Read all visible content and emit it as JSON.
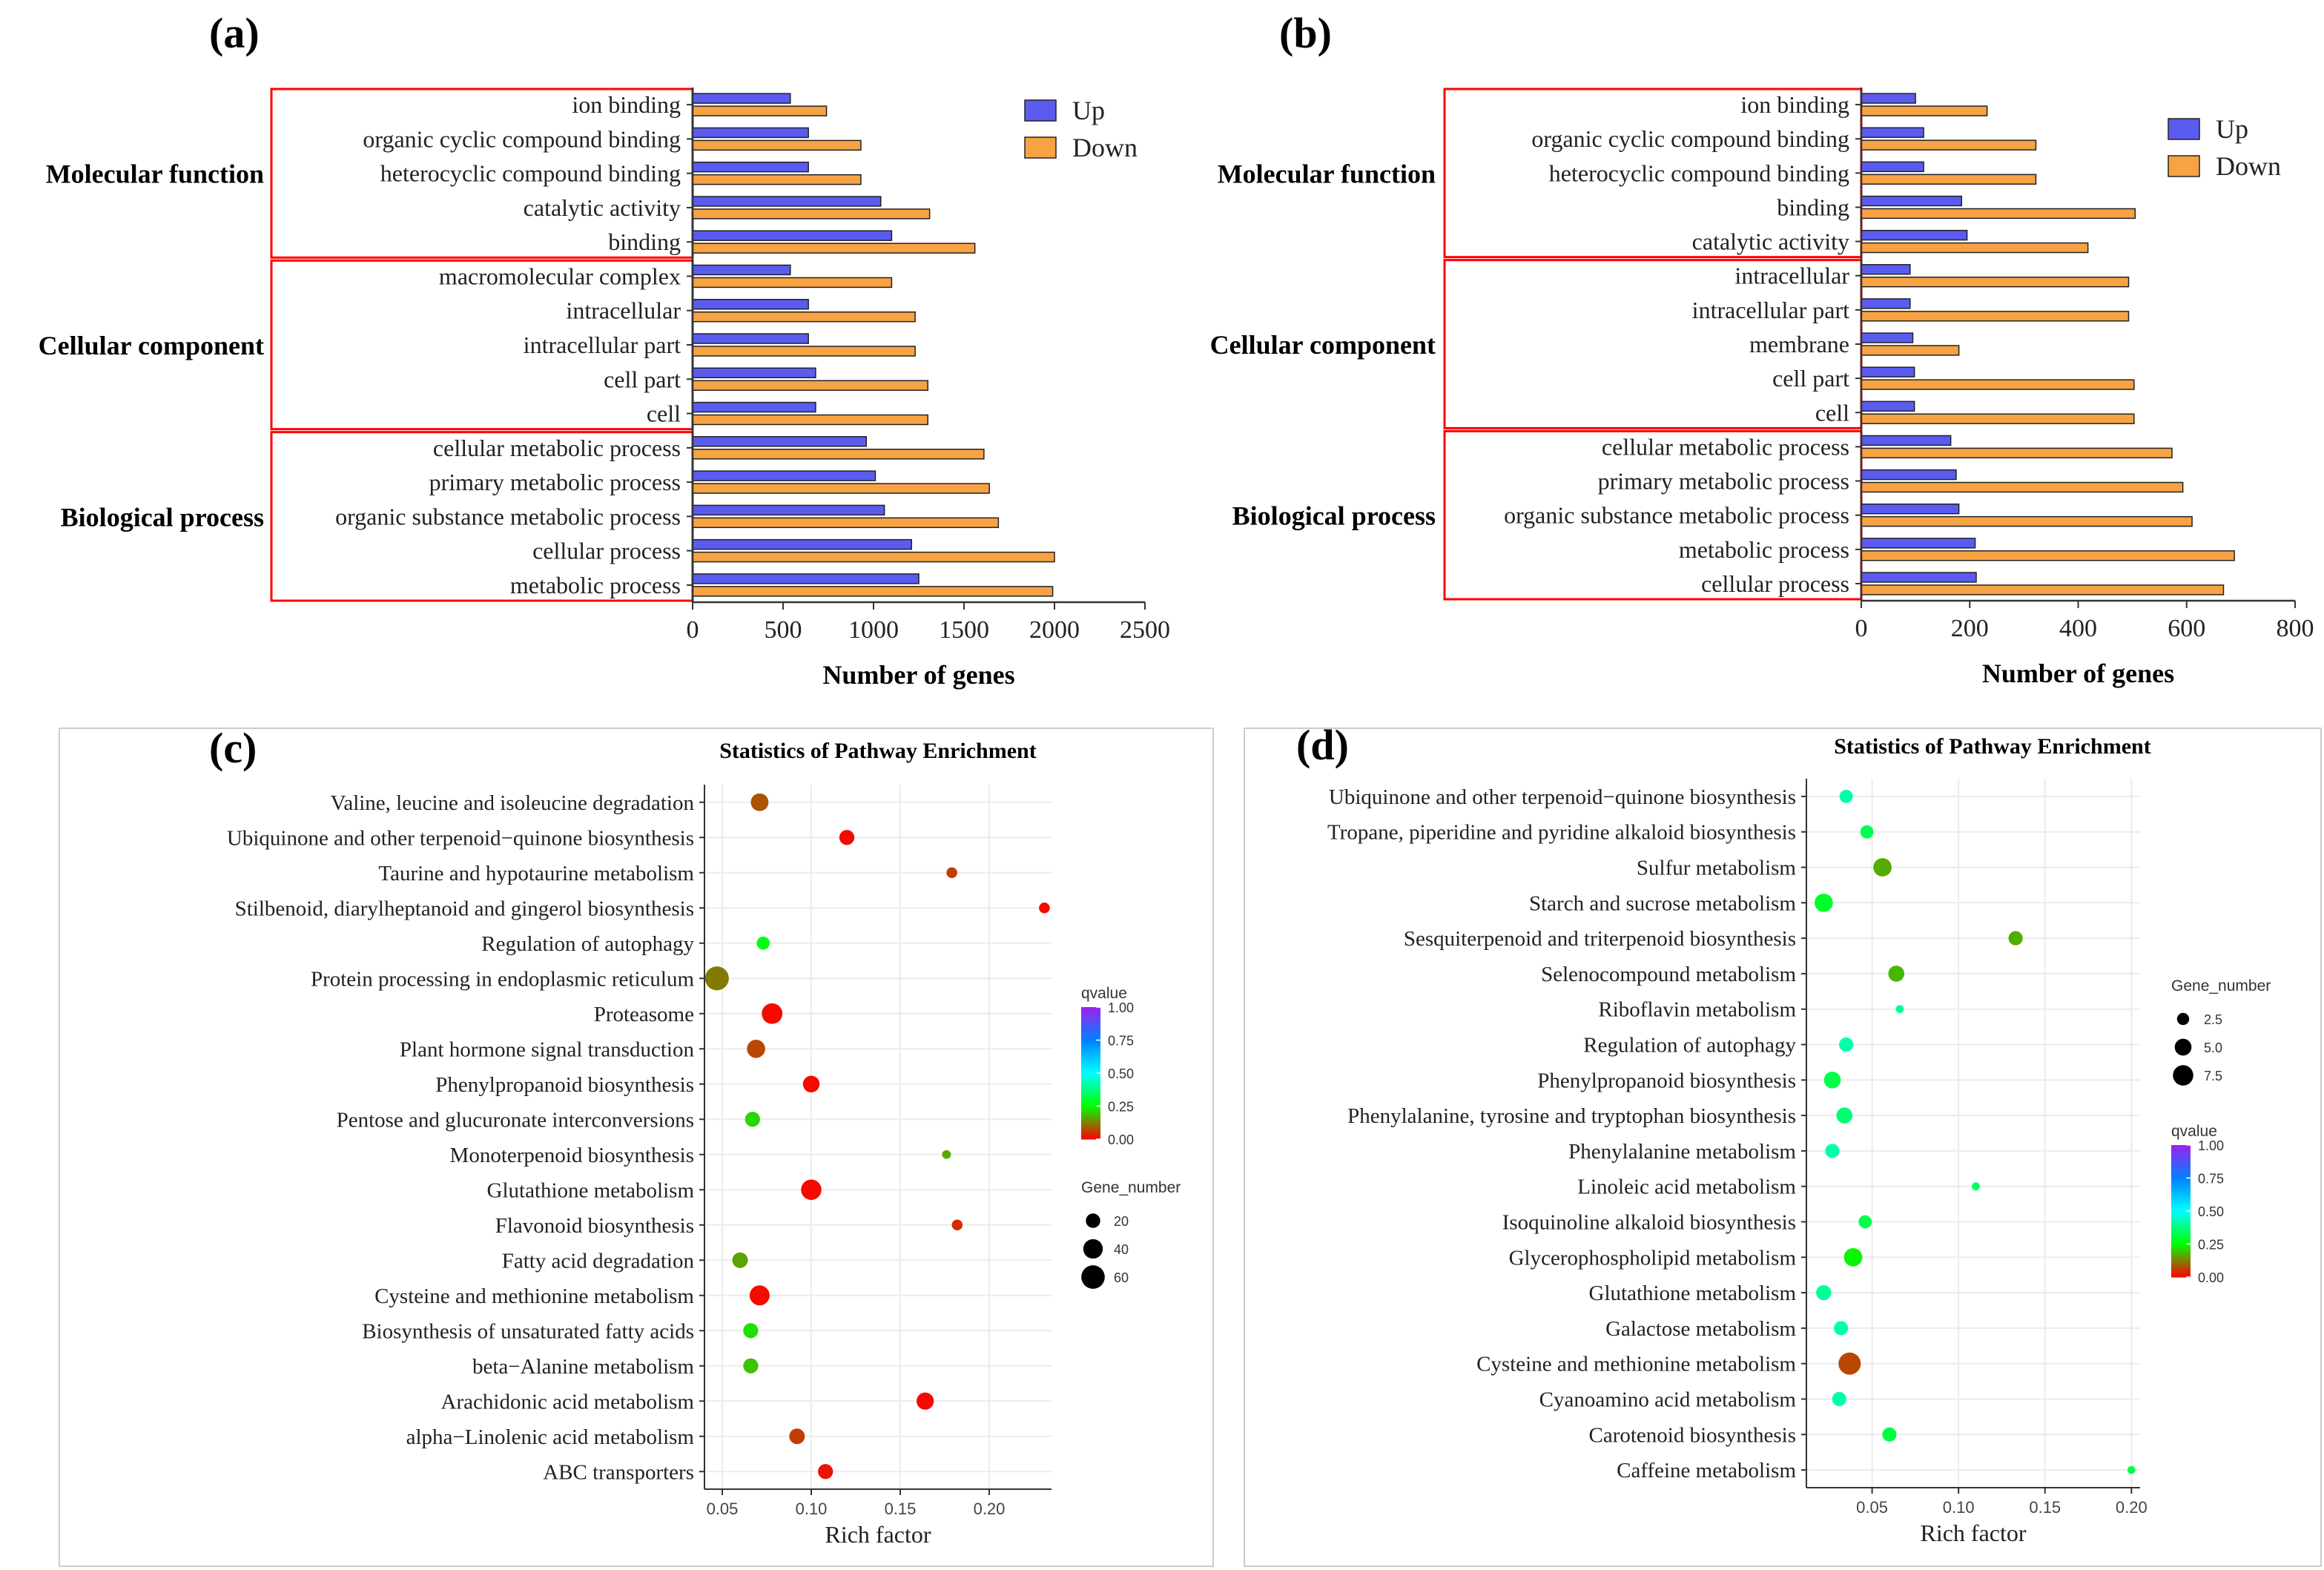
{
  "figure_labels": {
    "a": "(a)",
    "b": "(b)",
    "c": "(c)",
    "d": "(d)"
  },
  "colors": {
    "up": "#5b5bf0",
    "down": "#f7a243",
    "box": "#ff0000",
    "axis": "#333333",
    "grid": "#ebebeb"
  },
  "chart_data": [
    {
      "id": "a",
      "type": "bar",
      "orientation": "horizontal",
      "xlabel": "Number of genes",
      "xlim": [
        0,
        2500
      ],
      "xticks": [
        0,
        500,
        1000,
        1500,
        2000,
        2500
      ],
      "legend": [
        "Up",
        "Down"
      ],
      "legend_position": "top-right",
      "groups": [
        {
          "name": "Molecular function",
          "start": 0,
          "end": 4
        },
        {
          "name": "Cellular component",
          "start": 5,
          "end": 9
        },
        {
          "name": "Biological process",
          "start": 10,
          "end": 14
        }
      ],
      "categories": [
        "ion binding",
        "organic cyclic compound binding",
        "heterocyclic compound binding",
        "catalytic activity",
        "binding",
        "macromolecular complex",
        "intracellular",
        "intracellular part",
        "cell part",
        "cell",
        "cellular metabolic process",
        "primary metabolic process",
        "organic substance metabolic process",
        "cellular process",
        "metabolic process"
      ],
      "series": [
        {
          "name": "Up",
          "values": [
            540,
            640,
            640,
            1040,
            1100,
            540,
            640,
            640,
            680,
            680,
            960,
            1010,
            1060,
            1210,
            1250
          ]
        },
        {
          "name": "Down",
          "values": [
            740,
            930,
            930,
            1310,
            1560,
            1100,
            1230,
            1230,
            1300,
            1300,
            1610,
            1640,
            1690,
            2000,
            1990
          ]
        }
      ]
    },
    {
      "id": "b",
      "type": "bar",
      "orientation": "horizontal",
      "xlabel": "Number of genes",
      "xlim": [
        0,
        800
      ],
      "xticks": [
        0,
        200,
        400,
        600,
        800
      ],
      "legend": [
        "Up",
        "Down"
      ],
      "legend_position": "top-right",
      "groups": [
        {
          "name": "Molecular function",
          "start": 0,
          "end": 4
        },
        {
          "name": "Cellular component",
          "start": 5,
          "end": 9
        },
        {
          "name": "Biological process",
          "start": 10,
          "end": 14
        }
      ],
      "categories": [
        "ion binding",
        "organic cyclic compound binding",
        "heterocyclic compound binding",
        "binding",
        "catalytic activity",
        "intracellular",
        "intracellular part",
        "membrane",
        "cell part",
        "cell",
        "cellular metabolic process",
        "primary metabolic process",
        "organic substance metabolic process",
        "metabolic process",
        "cellular process"
      ],
      "series": [
        {
          "name": "Up",
          "values": [
            100,
            115,
            115,
            185,
            195,
            90,
            90,
            95,
            98,
            98,
            165,
            175,
            180,
            210,
            212
          ]
        },
        {
          "name": "Down",
          "values": [
            232,
            322,
            322,
            505,
            418,
            493,
            493,
            180,
            503,
            503,
            573,
            593,
            610,
            688,
            668
          ]
        }
      ]
    },
    {
      "id": "c",
      "type": "scatter",
      "title": "Statistics of Pathway Enrichment",
      "xlabel": "Rich factor",
      "xlim": [
        0.04,
        0.235
      ],
      "xticks": [
        0.05,
        0.1,
        0.15,
        0.2
      ],
      "xtick_labels": [
        "0.05",
        "0.10",
        "0.15",
        "0.20"
      ],
      "color_legend_title": "qvalue",
      "color_ticks": [
        "1.00",
        "0.75",
        "0.50",
        "0.25",
        "0.00"
      ],
      "color_scale": "rainbow red(0) to purple(1)",
      "size_legend_title": "Gene_number",
      "size_ticks": [
        20,
        40,
        60
      ],
      "size_labels": [
        "20",
        "40",
        "60"
      ],
      "size_range": [
        2,
        70
      ],
      "categories": [
        "Valine, leucine and isoleucine degradation",
        "Ubiquinone and other terpenoid−quinone biosynthesis",
        "Taurine and hypotaurine metabolism",
        "Stilbenoid, diarylheptanoid and gingerol biosynthesis",
        "Regulation of autophagy",
        "Protein processing in endoplasmic reticulum",
        "Proteasome",
        "Plant hormone signal transduction",
        "Phenylpropanoid biosynthesis",
        "Pentose and glucuronate interconversions",
        "Monoterpenoid biosynthesis",
        "Glutathione metabolism",
        "Flavonoid biosynthesis",
        "Fatty acid degradation",
        "Cysteine and methionine metabolism",
        "Biosynthesis of unsaturated fatty acids",
        "beta−Alanine metabolism",
        "Arachidonic acid metabolism",
        "alpha−Linolenic acid metabolism",
        "ABC transporters"
      ],
      "points": [
        {
          "rich_factor": 0.071,
          "gene_number": 32,
          "qvalue": 0.08
        },
        {
          "rich_factor": 0.12,
          "gene_number": 22,
          "qvalue": 0.01
        },
        {
          "rich_factor": 0.179,
          "gene_number": 10,
          "qvalue": 0.06
        },
        {
          "rich_factor": 0.231,
          "gene_number": 10,
          "qvalue": 0.01
        },
        {
          "rich_factor": 0.073,
          "gene_number": 16,
          "qvalue": 0.27
        },
        {
          "rich_factor": 0.047,
          "gene_number": 62,
          "qvalue": 0.12
        },
        {
          "rich_factor": 0.078,
          "gene_number": 45,
          "qvalue": 0.01
        },
        {
          "rich_factor": 0.069,
          "gene_number": 34,
          "qvalue": 0.07
        },
        {
          "rich_factor": 0.1,
          "gene_number": 28,
          "qvalue": 0.01
        },
        {
          "rich_factor": 0.067,
          "gene_number": 22,
          "qvalue": 0.21
        },
        {
          "rich_factor": 0.176,
          "gene_number": 6,
          "qvalue": 0.17
        },
        {
          "rich_factor": 0.1,
          "gene_number": 44,
          "qvalue": 0.01
        },
        {
          "rich_factor": 0.182,
          "gene_number": 10,
          "qvalue": 0.04
        },
        {
          "rich_factor": 0.06,
          "gene_number": 24,
          "qvalue": 0.16
        },
        {
          "rich_factor": 0.071,
          "gene_number": 42,
          "qvalue": 0.01
        },
        {
          "rich_factor": 0.066,
          "gene_number": 22,
          "qvalue": 0.22
        },
        {
          "rich_factor": 0.066,
          "gene_number": 22,
          "qvalue": 0.19
        },
        {
          "rich_factor": 0.164,
          "gene_number": 30,
          "qvalue": 0.01
        },
        {
          "rich_factor": 0.092,
          "gene_number": 24,
          "qvalue": 0.06
        },
        {
          "rich_factor": 0.108,
          "gene_number": 22,
          "qvalue": 0.02
        }
      ]
    },
    {
      "id": "d",
      "type": "scatter",
      "title": "Statistics of Pathway Enrichment",
      "xlabel": "Rich factor",
      "xlim": [
        0.012,
        0.205
      ],
      "xticks": [
        0.05,
        0.1,
        0.15,
        0.2
      ],
      "xtick_labels": [
        "0.05",
        "0.10",
        "0.15",
        "0.20"
      ],
      "color_legend_title": "qvalue",
      "color_ticks": [
        "1.00",
        "0.75",
        "0.50",
        "0.25",
        "0.00"
      ],
      "color_scale": "rainbow red(0) to purple(1)",
      "size_legend_title": "Gene_number",
      "size_ticks": [
        2.5,
        5.0,
        7.5
      ],
      "size_labels": [
        "2.5",
        "5.0",
        "7.5"
      ],
      "size_range": [
        0.5,
        9
      ],
      "categories": [
        "Ubiquinone and other terpenoid−quinone biosynthesis",
        "Tropane, piperidine and pyridine alkaloid biosynthesis",
        "Sulfur metabolism",
        "Starch and sucrose metabolism",
        "Sesquiterpenoid and triterpenoid biosynthesis",
        "Selenocompound metabolism",
        "Riboflavin metabolism",
        "Regulation of autophagy",
        "Phenylpropanoid biosynthesis",
        "Phenylalanine, tyrosine and tryptophan biosynthesis",
        "Phenylalanine metabolism",
        "Linoleic acid metabolism",
        "Isoquinoline alkaloid biosynthesis",
        "Glycerophospholipid metabolism",
        "Glutathione metabolism",
        "Galactose metabolism",
        "Cysteine and methionine metabolism",
        "Cyanoamino acid metabolism",
        "Carotenoid biosynthesis",
        "Caffeine metabolism"
      ],
      "points": [
        {
          "rich_factor": 0.035,
          "gene_number": 3.0,
          "qvalue": 0.42
        },
        {
          "rich_factor": 0.047,
          "gene_number": 3.0,
          "qvalue": 0.33
        },
        {
          "rich_factor": 0.056,
          "gene_number": 6.0,
          "qvalue": 0.17
        },
        {
          "rich_factor": 0.022,
          "gene_number": 6.0,
          "qvalue": 0.29
        },
        {
          "rich_factor": 0.133,
          "gene_number": 3.5,
          "qvalue": 0.17
        },
        {
          "rich_factor": 0.064,
          "gene_number": 4.5,
          "qvalue": 0.18
        },
        {
          "rich_factor": 0.066,
          "gene_number": 1.0,
          "qvalue": 0.4
        },
        {
          "rich_factor": 0.035,
          "gene_number": 3.5,
          "qvalue": 0.42
        },
        {
          "rich_factor": 0.027,
          "gene_number": 5.0,
          "qvalue": 0.32
        },
        {
          "rich_factor": 0.034,
          "gene_number": 4.5,
          "qvalue": 0.36
        },
        {
          "rich_factor": 0.027,
          "gene_number": 3.5,
          "qvalue": 0.42
        },
        {
          "rich_factor": 0.11,
          "gene_number": 1.0,
          "qvalue": 0.35
        },
        {
          "rich_factor": 0.046,
          "gene_number": 3.0,
          "qvalue": 0.33
        },
        {
          "rich_factor": 0.039,
          "gene_number": 6.0,
          "qvalue": 0.24
        },
        {
          "rich_factor": 0.022,
          "gene_number": 4.0,
          "qvalue": 0.4
        },
        {
          "rich_factor": 0.032,
          "gene_number": 3.5,
          "qvalue": 0.42
        },
        {
          "rich_factor": 0.037,
          "gene_number": 9.0,
          "qvalue": 0.07
        },
        {
          "rich_factor": 0.031,
          "gene_number": 3.5,
          "qvalue": 0.42
        },
        {
          "rich_factor": 0.06,
          "gene_number": 3.5,
          "qvalue": 0.31
        },
        {
          "rich_factor": 0.2,
          "gene_number": 1.0,
          "qvalue": 0.32
        }
      ]
    }
  ]
}
